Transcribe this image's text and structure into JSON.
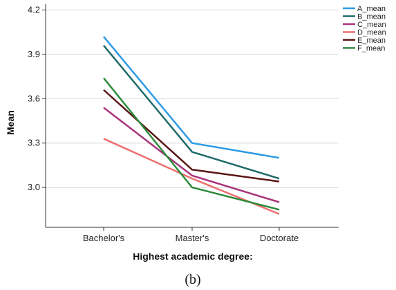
{
  "chart_data": {
    "type": "line",
    "categories": [
      "Bachelor's",
      "Master's",
      "Doctorate"
    ],
    "xlabel": "Highest academic degree:",
    "ylabel": "Mean",
    "ylim": [
      2.73,
      4.24
    ],
    "yticks": [
      3.0,
      3.3,
      3.6,
      3.9,
      4.2
    ],
    "ytick_labels": [
      "3.0",
      "3.3",
      "3.6",
      "3.9",
      "4.2"
    ],
    "grid": "horizontal",
    "legend_position": "top-right",
    "caption": "(b)",
    "series": [
      {
        "name": "A_mean",
        "color": "#2b9be6",
        "values": [
          4.02,
          3.3,
          3.2
        ]
      },
      {
        "name": "B_mean",
        "color": "#1e6b68",
        "values": [
          3.96,
          3.24,
          3.06
        ]
      },
      {
        "name": "C_mean",
        "color": "#a8327a",
        "values": [
          3.54,
          3.08,
          2.9
        ]
      },
      {
        "name": "D_mean",
        "color": "#ee6f6f",
        "values": [
          3.33,
          3.06,
          2.82
        ]
      },
      {
        "name": "E_mean",
        "color": "#5a1515",
        "values": [
          3.66,
          3.12,
          3.04
        ]
      },
      {
        "name": "F_mean",
        "color": "#2c8a3a",
        "values": [
          3.74,
          3.0,
          2.85
        ]
      }
    ]
  }
}
